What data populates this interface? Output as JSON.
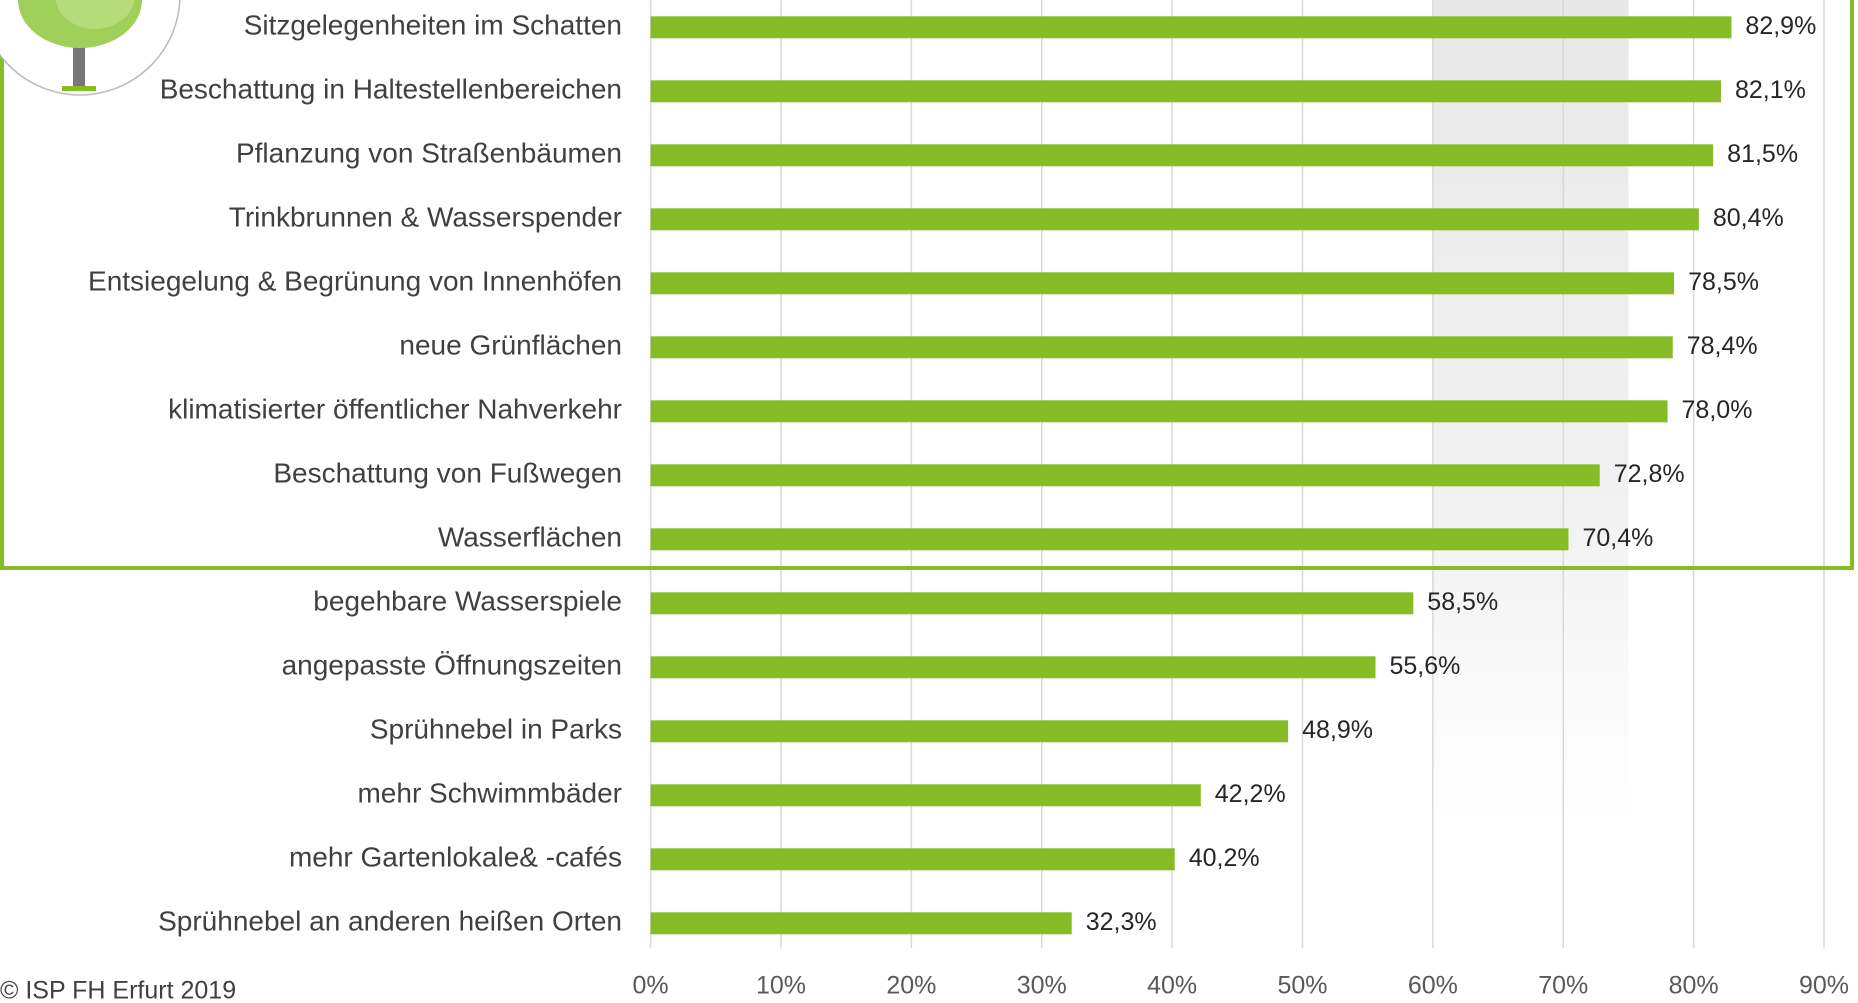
{
  "chart_data": {
    "type": "barh",
    "categories": [
      "Sitzgelegenheiten im Schatten",
      "Beschattung in Haltestellenbereichen",
      "Pflanzung von Straßenbäumen",
      "Trinkbrunnen & Wasserspender",
      "Entsiegelung & Begrünung von Innenhöfen",
      "neue Grünflächen",
      "klimatisierter öffentlicher Nahverkehr",
      "Beschattung von Fußwegen",
      "Wasserflächen",
      "begehbare Wasserspiele",
      "angepasste Öffnungszeiten",
      "Sprühnebel in Parks",
      "mehr Schwimmbäder",
      "mehr Gartenlokale& -cafés",
      "Sprühnebel an anderen heißen Orten"
    ],
    "values": [
      82.9,
      82.1,
      81.5,
      80.4,
      78.5,
      78.4,
      78.0,
      72.8,
      70.4,
      58.5,
      55.6,
      48.9,
      42.2,
      40.2,
      32.3
    ],
    "value_labels": [
      "82,9%",
      "82,1%",
      "81,5%",
      "80,4%",
      "78,5%",
      "78,4%",
      "78,0%",
      "72,8%",
      "70,4%",
      "58,5%",
      "55,6%",
      "48,9%",
      "42,2%",
      "40,2%",
      "32,3%"
    ],
    "color": "#86bc25",
    "xlim": [
      0,
      90
    ],
    "xticks": [
      {
        "value": 0,
        "label": "0%"
      },
      {
        "value": 10,
        "label": "10%"
      },
      {
        "value": 20,
        "label": "20%"
      },
      {
        "value": 30,
        "label": "30%"
      },
      {
        "value": 40,
        "label": "40%"
      },
      {
        "value": 50,
        "label": "50%"
      },
      {
        "value": 60,
        "label": "60%"
      },
      {
        "value": 70,
        "label": "70%"
      },
      {
        "value": 80,
        "label": "80%"
      },
      {
        "value": 90,
        "label": "90%"
      }
    ],
    "shaded_band": [
      60,
      75
    ],
    "grid": true,
    "footer": "© ISP FH Erfurt 2019"
  }
}
